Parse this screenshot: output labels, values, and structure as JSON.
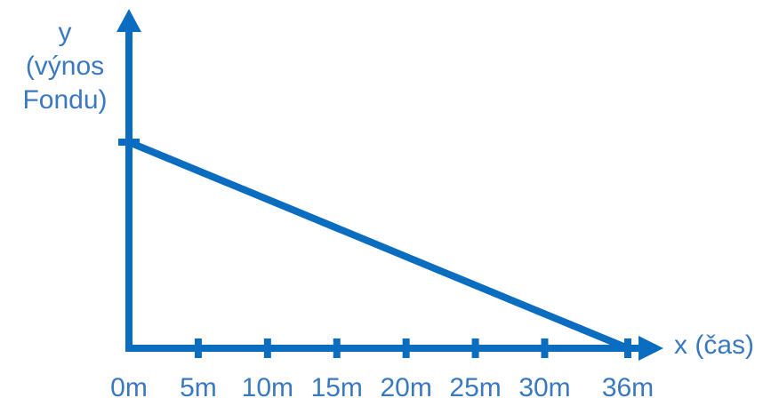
{
  "colors": {
    "axis": "#0a6dc0",
    "line": "#0a6dc0",
    "text": "#3a78c0"
  },
  "chart_data": {
    "type": "line",
    "title": "",
    "xlabel": "x (čas)",
    "ylabel_lines": [
      "y",
      "(výnos",
      "Fondu)"
    ],
    "tick_labels": [
      "0m",
      "5m",
      "10m",
      "15m",
      "20m",
      "25m",
      "30m",
      "36m"
    ],
    "x_ticks": [
      0,
      5,
      10,
      15,
      20,
      25,
      30,
      36
    ],
    "xlim": [
      0,
      36
    ],
    "ylim": [
      0,
      1
    ],
    "y_ticks": [
      1
    ],
    "series": [
      {
        "x": [
          0,
          36
        ],
        "y": [
          1,
          0
        ]
      }
    ],
    "grid": false,
    "legend": "none"
  }
}
